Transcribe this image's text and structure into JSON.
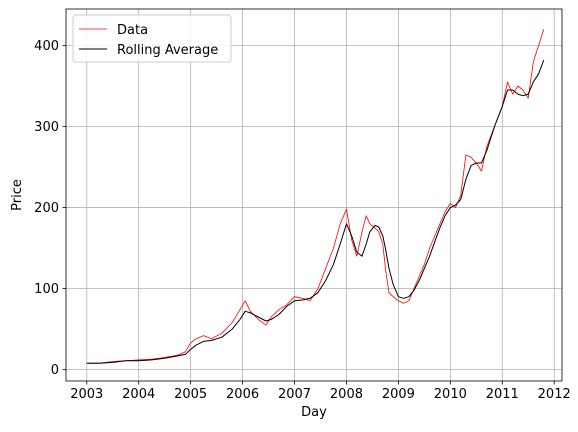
{
  "chart_data": {
    "type": "line",
    "title": "",
    "xlabel": "Day",
    "ylabel": "Price",
    "xlim": [
      2002.6,
      2012.15
    ],
    "ylim": [
      -14,
      445
    ],
    "grid": true,
    "legend_position": "top-left",
    "x_ticks": [
      2003,
      2004,
      2005,
      2006,
      2007,
      2008,
      2009,
      2010,
      2011,
      2012
    ],
    "x_tick_labels": [
      "2003",
      "2004",
      "2005",
      "2006",
      "2007",
      "2008",
      "2009",
      "2010",
      "2011",
      "2012"
    ],
    "y_ticks": [
      0,
      100,
      200,
      300,
      400
    ],
    "y_tick_labels": [
      "0",
      "100",
      "200",
      "300",
      "400"
    ],
    "series": [
      {
        "name": "Data",
        "color": "#ff0000",
        "style": "thin-line",
        "x": [
          2003.0,
          2003.25,
          2003.5,
          2003.75,
          2004.0,
          2004.25,
          2004.5,
          2004.75,
          2004.9,
          2005.0,
          2005.1,
          2005.25,
          2005.4,
          2005.6,
          2005.8,
          2005.95,
          2006.05,
          2006.15,
          2006.3,
          2006.45,
          2006.55,
          2006.7,
          2006.85,
          2007.0,
          2007.15,
          2007.3,
          2007.45,
          2007.6,
          2007.75,
          2007.88,
          2008.0,
          2008.1,
          2008.2,
          2008.3,
          2008.38,
          2008.45,
          2008.55,
          2008.62,
          2008.7,
          2008.75,
          2008.82,
          2008.9,
          2009.0,
          2009.1,
          2009.2,
          2009.3,
          2009.4,
          2009.5,
          2009.6,
          2009.7,
          2009.8,
          2009.9,
          2010.0,
          2010.1,
          2010.2,
          2010.3,
          2010.4,
          2010.5,
          2010.6,
          2010.7,
          2010.85,
          2011.0,
          2011.1,
          2011.2,
          2011.3,
          2011.4,
          2011.5,
          2011.6,
          2011.7,
          2011.8
        ],
        "y": [
          8,
          8,
          10,
          11,
          12,
          13,
          15,
          18,
          22,
          33,
          38,
          42,
          38,
          45,
          58,
          74,
          85,
          72,
          62,
          55,
          65,
          74,
          80,
          90,
          88,
          85,
          100,
          125,
          150,
          180,
          198,
          160,
          140,
          170,
          190,
          180,
          175,
          170,
          155,
          125,
          95,
          90,
          85,
          82,
          85,
          100,
          115,
          130,
          150,
          165,
          180,
          195,
          205,
          200,
          215,
          265,
          262,
          255,
          245,
          275,
          300,
          325,
          355,
          340,
          350,
          345,
          335,
          380,
          400,
          420
        ]
      },
      {
        "name": "Rolling Average",
        "color": "#000000",
        "style": "line",
        "x": [
          2003.0,
          2003.25,
          2003.5,
          2003.75,
          2004.0,
          2004.25,
          2004.5,
          2004.75,
          2004.9,
          2005.0,
          2005.1,
          2005.25,
          2005.4,
          2005.6,
          2005.8,
          2005.95,
          2006.05,
          2006.15,
          2006.3,
          2006.45,
          2006.55,
          2006.7,
          2006.85,
          2007.0,
          2007.15,
          2007.3,
          2007.45,
          2007.6,
          2007.75,
          2007.88,
          2008.0,
          2008.1,
          2008.2,
          2008.3,
          2008.38,
          2008.45,
          2008.55,
          2008.62,
          2008.7,
          2008.75,
          2008.82,
          2008.9,
          2009.0,
          2009.1,
          2009.2,
          2009.3,
          2009.4,
          2009.5,
          2009.6,
          2009.7,
          2009.8,
          2009.9,
          2010.0,
          2010.1,
          2010.2,
          2010.3,
          2010.4,
          2010.5,
          2010.6,
          2010.7,
          2010.85,
          2011.0,
          2011.1,
          2011.2,
          2011.3,
          2011.4,
          2011.5,
          2011.6,
          2011.7,
          2011.8
        ],
        "y": [
          8,
          8,
          9,
          11,
          11,
          12,
          14,
          17,
          19,
          25,
          30,
          35,
          36,
          40,
          50,
          62,
          72,
          70,
          65,
          60,
          62,
          68,
          78,
          85,
          86,
          88,
          95,
          110,
          130,
          155,
          180,
          165,
          145,
          140,
          155,
          170,
          178,
          176,
          165,
          150,
          125,
          105,
          90,
          88,
          90,
          98,
          110,
          125,
          140,
          158,
          175,
          190,
          200,
          203,
          210,
          235,
          252,
          255,
          255,
          270,
          300,
          325,
          345,
          345,
          340,
          338,
          340,
          355,
          365,
          382
        ]
      }
    ]
  }
}
